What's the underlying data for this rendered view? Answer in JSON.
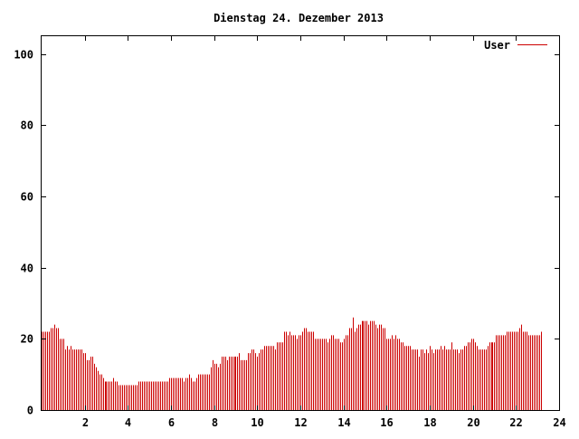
{
  "chart_data": {
    "type": "bar",
    "title": "Dienstag 24. Dezember 2013",
    "xlabel": "",
    "ylabel": "",
    "xlim": [
      0,
      24
    ],
    "ylim": [
      0,
      105
    ],
    "x_ticks": [
      2,
      4,
      6,
      8,
      10,
      12,
      14,
      16,
      18,
      20,
      22,
      24
    ],
    "x_tick_labels": [
      "2",
      "4",
      "6",
      "8",
      "10",
      "12",
      "14",
      "16",
      "18",
      "20",
      "22",
      "24"
    ],
    "y_ticks": [
      0,
      20,
      40,
      60,
      80,
      100
    ],
    "y_tick_labels": [
      "0",
      "20",
      "40",
      "60",
      "80",
      "100"
    ],
    "grid": false,
    "legend_position": "top-right",
    "series": [
      {
        "name": "User",
        "color": "#cc0000",
        "interval_hours": 0.08333,
        "values": [
          22,
          22,
          22,
          22,
          22,
          23,
          23,
          24,
          23,
          23,
          20,
          20,
          20,
          17,
          18,
          17,
          18,
          17,
          17,
          17,
          17,
          17,
          17,
          16,
          16,
          14,
          14,
          15,
          15,
          13,
          12,
          11,
          10,
          10,
          9,
          8,
          8,
          8,
          8,
          8,
          9,
          8,
          8,
          7,
          7,
          7,
          7,
          7,
          7,
          7,
          7,
          7,
          7,
          7,
          8,
          8,
          8,
          8,
          8,
          8,
          8,
          8,
          8,
          8,
          8,
          8,
          8,
          8,
          8,
          8,
          8,
          9,
          9,
          9,
          9,
          9,
          9,
          9,
          9,
          8,
          9,
          9,
          10,
          9,
          8,
          8,
          9,
          10,
          10,
          10,
          10,
          10,
          10,
          10,
          12,
          14,
          13,
          13,
          12,
          13,
          15,
          15,
          15,
          14,
          15,
          15,
          15,
          15,
          15,
          15,
          16,
          14,
          14,
          14,
          14,
          16,
          16,
          17,
          17,
          16,
          15,
          16,
          17,
          17,
          18,
          18,
          18,
          18,
          18,
          18,
          17,
          19,
          19,
          19,
          19,
          22,
          22,
          21,
          22,
          21,
          21,
          21,
          20,
          21,
          21,
          22,
          23,
          23,
          22,
          22,
          22,
          22,
          20,
          20,
          20,
          20,
          20,
          20,
          20,
          19,
          20,
          21,
          21,
          20,
          20,
          20,
          19,
          19,
          20,
          21,
          21,
          23,
          23,
          26,
          22,
          23,
          24,
          24,
          25,
          25,
          25,
          25,
          24,
          25,
          25,
          25,
          24,
          23,
          24,
          24,
          23,
          23,
          20,
          20,
          20,
          21,
          20,
          21,
          20,
          20,
          19,
          19,
          18,
          18,
          18,
          18,
          17,
          17,
          17,
          17,
          15,
          17,
          17,
          16,
          17,
          16,
          18,
          17,
          16,
          17,
          17,
          17,
          18,
          17,
          18,
          17,
          17,
          17,
          19,
          17,
          17,
          17,
          16,
          17,
          17,
          18,
          18,
          19,
          19,
          20,
          20,
          19,
          18,
          17,
          17,
          17,
          17,
          17,
          18,
          19,
          19,
          19,
          19,
          21,
          21,
          21,
          21,
          21,
          21,
          22,
          22,
          22,
          22,
          22,
          22,
          22,
          23,
          24,
          22,
          22,
          22,
          21,
          21,
          21,
          21,
          21,
          21,
          21,
          22
        ]
      }
    ]
  }
}
